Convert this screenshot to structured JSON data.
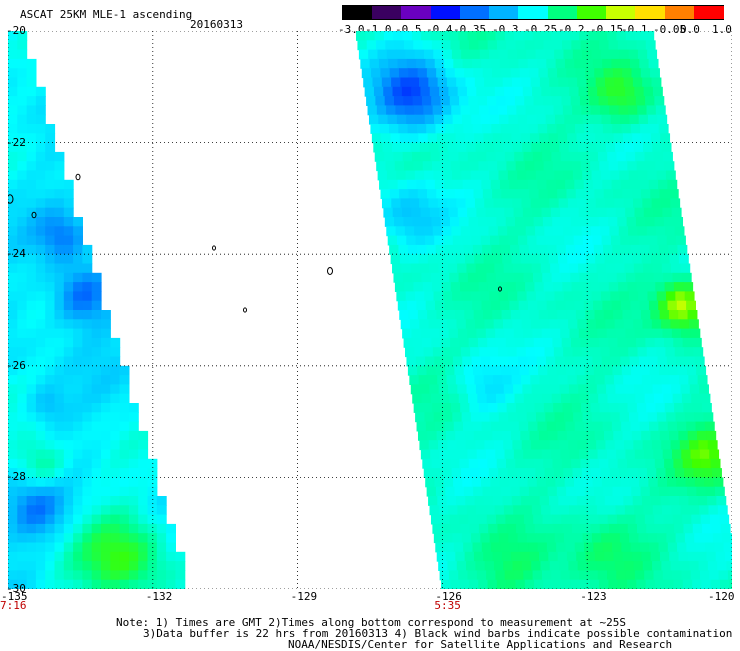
{
  "header": {
    "title": "ASCAT 25KM MLE-1 ascending",
    "date": "20160313"
  },
  "colorbar": {
    "labels": [
      "-3.0",
      "-1.0",
      "-0.5",
      "-0.4",
      "-0.35",
      "-0.3",
      "-0.25",
      "-0.2",
      "-0.15",
      "-0.1",
      "-0.05",
      "0.0",
      "1.0"
    ],
    "colors": [
      "#000000",
      "#3a0060",
      "#6a00c0",
      "#0010ff",
      "#0070ff",
      "#00b4ff",
      "#00ffff",
      "#00ff80",
      "#40ff00",
      "#c8ff00",
      "#ffe000",
      "#ff8000",
      "#ff0000"
    ]
  },
  "map": {
    "lat_labels": [
      "-20",
      "-22",
      "-24",
      "-26",
      "-28",
      "-30"
    ],
    "lon_labels": [
      "-135",
      "-132",
      "-129",
      "-126",
      "-123",
      "-120"
    ],
    "lon_values": [
      -135,
      -132,
      -129,
      -126,
      -123,
      -120
    ],
    "lat_values": [
      -20,
      -22,
      -24,
      -26,
      -28,
      -30
    ]
  },
  "times": [
    {
      "label": "7:16",
      "lon": -135
    },
    {
      "label": "5:35",
      "lon": -126
    }
  ],
  "footer": {
    "line1": "Note: 1) Times are GMT 2)Times along bottom correspond to measurement at ~25S",
    "line2": "3)Data buffer is 22 hrs from 20160313 4) Black wind barbs indicate possible contamination",
    "line3": "NOAA/NESDIS/Center for Satellite Applications and Research"
  }
}
